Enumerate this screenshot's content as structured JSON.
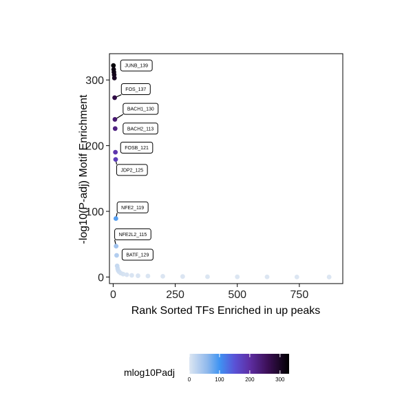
{
  "chart_data": {
    "type": "scatter",
    "xlabel": "Rank Sorted TFs Enriched in up peaks",
    "ylabel": "-log10(P-adj) Motif Enrichment",
    "xlim": [
      -15,
      925
    ],
    "ylim": [
      -10,
      340
    ],
    "x_ticks": [
      0,
      250,
      500,
      750
    ],
    "y_ticks": [
      0,
      100,
      200,
      300
    ],
    "grid": false,
    "points": [
      {
        "x": 1,
        "y": 322
      },
      {
        "x": 2,
        "y": 316
      },
      {
        "x": 3,
        "y": 312
      },
      {
        "x": 4,
        "y": 308
      },
      {
        "x": 5,
        "y": 303
      },
      {
        "x": 6,
        "y": 273
      },
      {
        "x": 7,
        "y": 240
      },
      {
        "x": 8,
        "y": 226
      },
      {
        "x": 9,
        "y": 190
      },
      {
        "x": 10,
        "y": 179
      },
      {
        "x": 11,
        "y": 89
      },
      {
        "x": 12,
        "y": 47
      },
      {
        "x": 14,
        "y": 33
      },
      {
        "x": 16,
        "y": 17
      },
      {
        "x": 18,
        "y": 13
      },
      {
        "x": 20,
        "y": 10
      },
      {
        "x": 24,
        "y": 8
      },
      {
        "x": 30,
        "y": 6
      },
      {
        "x": 40,
        "y": 4.5
      },
      {
        "x": 55,
        "y": 3.5
      },
      {
        "x": 75,
        "y": 2.6
      },
      {
        "x": 100,
        "y": 2
      },
      {
        "x": 140,
        "y": 1.5
      },
      {
        "x": 200,
        "y": 1.1
      },
      {
        "x": 280,
        "y": 0.8
      },
      {
        "x": 380,
        "y": 0.5
      },
      {
        "x": 500,
        "y": 0.3
      },
      {
        "x": 620,
        "y": 0.2
      },
      {
        "x": 740,
        "y": 0.1
      },
      {
        "x": 870,
        "y": 0
      }
    ],
    "annotations": [
      {
        "label": "JUNB_139",
        "x": 1,
        "y": 322,
        "box_x": 30,
        "box_y": 322
      },
      {
        "label": "FOS_137",
        "x": 6,
        "y": 273,
        "box_x": 33,
        "box_y": 286
      },
      {
        "label": "BACH1_130",
        "x": 7,
        "y": 240,
        "box_x": 40,
        "box_y": 256
      },
      {
        "label": "BACH2_113",
        "x": 8,
        "y": 226,
        "box_x": 40,
        "box_y": 226
      },
      {
        "label": "FOSB_121",
        "x": 9,
        "y": 190,
        "box_x": 30,
        "box_y": 197
      },
      {
        "label": "JDP2_125",
        "x": 10,
        "y": 179,
        "box_x": 14,
        "box_y": 163
      },
      {
        "label": "NFE2_119",
        "x": 11,
        "y": 89,
        "box_x": 16,
        "box_y": 106
      },
      {
        "label": "NFE2L2_115",
        "x": 12,
        "y": 47,
        "box_x": 6,
        "box_y": 65
      },
      {
        "label": "BATF_129",
        "x": 14,
        "y": 33,
        "box_x": 36,
        "box_y": 34
      }
    ],
    "color_scale": {
      "title": "mlog10Padj",
      "min": 0,
      "max": 330,
      "ticks": [
        0,
        100,
        200,
        300
      ],
      "stops": [
        {
          "value": 0,
          "color": "#dce6f2"
        },
        {
          "value": 60,
          "color": "#8fb8ec"
        },
        {
          "value": 100,
          "color": "#3f94f2"
        },
        {
          "value": 150,
          "color": "#5a52d6"
        },
        {
          "value": 200,
          "color": "#5e2ea3"
        },
        {
          "value": 260,
          "color": "#3b0f55"
        },
        {
          "value": 330,
          "color": "#000000"
        }
      ]
    }
  }
}
